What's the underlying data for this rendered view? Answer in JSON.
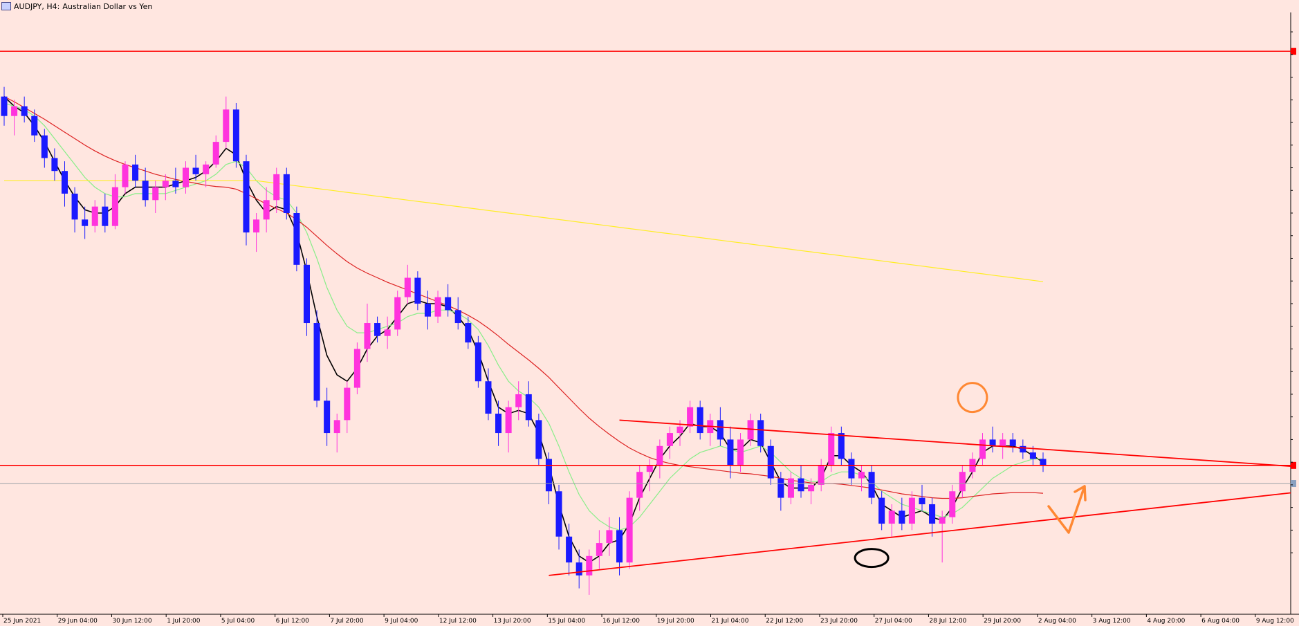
{
  "window": {
    "symbol": "AUDJPY, H4:",
    "description": "Australian Dollar vs Yen"
  },
  "colors": {
    "background": "#ffe6e0",
    "bull": "#ff33dd",
    "bear": "#1a1aff",
    "ma_fast": "#000000",
    "ma_mid": "#88ee88",
    "ma_slow": "#dd2222",
    "ma_long": "#ffee22",
    "level": "#ff0000",
    "annotation_orange": "#ff8833",
    "annotation_black": "#000000"
  },
  "chart_data": {
    "type": "candlestick",
    "timeframe": "H4",
    "xlabels": [
      "25 Jun 2021",
      "29 Jun 04:00",
      "30 Jun 12:00",
      "1 Jul 20:00",
      "5 Jul 04:00",
      "6 Jul 12:00",
      "7 Jul 20:00",
      "9 Jul 04:00",
      "12 Jul 12:00",
      "13 Jul 20:00",
      "15 Jul 04:00",
      "16 Jul 12:00",
      "19 Jul 20:00",
      "21 Jul 04:00",
      "22 Jul 12:00",
      "23 Jul 20:00",
      "27 Jul 04:00",
      "28 Jul 12:00",
      "29 Jul 20:00",
      "2 Aug 04:00",
      "3 Aug 12:00",
      "4 Aug 20:00",
      "6 Aug 04:00",
      "9 Aug 12:00"
    ],
    "ylabels": [
      "",
      "",
      "",
      "",
      "",
      "",
      "",
      "",
      "",
      "",
      "",
      "",
      "",
      "",
      "",
      "",
      "",
      "",
      "",
      "",
      "",
      "",
      "",
      ""
    ],
    "ohlc": [
      [
        84.0,
        84.15,
        83.55,
        83.7
      ],
      [
        83.7,
        83.95,
        83.4,
        83.85
      ],
      [
        83.85,
        84.0,
        83.6,
        83.7
      ],
      [
        83.7,
        83.8,
        83.3,
        83.4
      ],
      [
        83.4,
        83.5,
        82.9,
        83.05
      ],
      [
        83.05,
        83.2,
        82.7,
        82.85
      ],
      [
        82.85,
        83.0,
        82.3,
        82.5
      ],
      [
        82.5,
        82.6,
        81.9,
        82.1
      ],
      [
        82.1,
        82.3,
        81.8,
        82.0
      ],
      [
        82.0,
        82.4,
        81.9,
        82.3
      ],
      [
        82.3,
        82.5,
        81.9,
        82.0
      ],
      [
        82.0,
        82.8,
        81.95,
        82.6
      ],
      [
        82.6,
        83.0,
        82.5,
        82.95
      ],
      [
        82.95,
        83.1,
        82.6,
        82.7
      ],
      [
        82.7,
        82.9,
        82.3,
        82.4
      ],
      [
        82.4,
        82.7,
        82.2,
        82.6
      ],
      [
        82.6,
        82.8,
        82.4,
        82.7
      ],
      [
        82.7,
        82.9,
        82.5,
        82.6
      ],
      [
        82.6,
        83.0,
        82.5,
        82.9
      ],
      [
        82.9,
        83.1,
        82.7,
        82.8
      ],
      [
        82.8,
        83.0,
        82.6,
        82.95
      ],
      [
        82.95,
        83.4,
        82.9,
        83.3
      ],
      [
        83.3,
        84.0,
        83.2,
        83.8
      ],
      [
        83.8,
        83.9,
        82.9,
        83.0
      ],
      [
        83.0,
        83.1,
        81.7,
        81.9
      ],
      [
        81.9,
        82.2,
        81.6,
        82.1
      ],
      [
        82.1,
        82.6,
        81.9,
        82.4
      ],
      [
        82.4,
        82.9,
        82.2,
        82.8
      ],
      [
        82.8,
        82.9,
        82.1,
        82.2
      ],
      [
        82.2,
        82.3,
        81.3,
        81.4
      ],
      [
        81.4,
        81.5,
        80.3,
        80.5
      ],
      [
        80.5,
        80.7,
        79.2,
        79.3
      ],
      [
        79.3,
        79.5,
        78.6,
        78.8
      ],
      [
        78.8,
        79.1,
        78.5,
        79.0
      ],
      [
        79.0,
        79.6,
        78.8,
        79.5
      ],
      [
        79.5,
        80.2,
        79.4,
        80.1
      ],
      [
        80.1,
        80.8,
        79.9,
        80.5
      ],
      [
        80.5,
        80.6,
        80.2,
        80.3
      ],
      [
        80.3,
        80.6,
        80.1,
        80.4
      ],
      [
        80.4,
        81.0,
        80.3,
        80.9
      ],
      [
        80.9,
        81.4,
        80.8,
        81.2
      ],
      [
        81.2,
        81.3,
        80.7,
        80.8
      ],
      [
        80.8,
        81.0,
        80.4,
        80.6
      ],
      [
        80.6,
        81.0,
        80.5,
        80.9
      ],
      [
        80.9,
        81.1,
        80.6,
        80.7
      ],
      [
        80.7,
        80.9,
        80.4,
        80.5
      ],
      [
        80.5,
        80.6,
        80.1,
        80.2
      ],
      [
        80.2,
        80.3,
        79.5,
        79.6
      ],
      [
        79.6,
        79.8,
        79.0,
        79.1
      ],
      [
        79.1,
        79.3,
        78.6,
        78.8
      ],
      [
        78.8,
        79.3,
        78.5,
        79.2
      ],
      [
        79.2,
        79.6,
        79.0,
        79.4
      ],
      [
        79.4,
        79.6,
        78.9,
        79.0
      ],
      [
        79.0,
        79.1,
        78.3,
        78.4
      ],
      [
        78.4,
        78.5,
        77.7,
        77.9
      ],
      [
        77.9,
        78.0,
        77.0,
        77.2
      ],
      [
        77.2,
        77.4,
        76.6,
        76.8
      ],
      [
        76.8,
        77.0,
        76.4,
        76.6
      ],
      [
        76.6,
        77.0,
        76.3,
        76.9
      ],
      [
        76.9,
        77.3,
        76.7,
        77.1
      ],
      [
        77.1,
        77.5,
        76.9,
        77.3
      ],
      [
        77.3,
        77.5,
        76.6,
        76.8
      ],
      [
        76.8,
        77.9,
        76.7,
        77.8
      ],
      [
        77.8,
        78.3,
        77.6,
        78.2
      ],
      [
        78.2,
        78.4,
        77.9,
        78.3
      ],
      [
        78.3,
        78.7,
        78.1,
        78.6
      ],
      [
        78.6,
        78.9,
        78.4,
        78.8
      ],
      [
        78.8,
        79.0,
        78.6,
        78.9
      ],
      [
        78.9,
        79.3,
        78.8,
        79.2
      ],
      [
        79.2,
        79.3,
        78.7,
        78.8
      ],
      [
        78.8,
        79.1,
        78.6,
        79.0
      ],
      [
        79.0,
        79.2,
        78.6,
        78.7
      ],
      [
        78.7,
        78.9,
        78.1,
        78.3
      ],
      [
        78.3,
        78.8,
        78.2,
        78.7
      ],
      [
        78.7,
        79.1,
        78.6,
        79.0
      ],
      [
        79.0,
        79.1,
        78.5,
        78.6
      ],
      [
        78.6,
        78.7,
        78.0,
        78.1
      ],
      [
        78.1,
        78.2,
        77.6,
        77.8
      ],
      [
        77.8,
        78.2,
        77.7,
        78.1
      ],
      [
        78.1,
        78.3,
        77.8,
        77.9
      ],
      [
        77.9,
        78.1,
        77.7,
        78.0
      ],
      [
        78.0,
        78.4,
        77.9,
        78.3
      ],
      [
        78.3,
        78.9,
        78.2,
        78.8
      ],
      [
        78.8,
        78.9,
        78.3,
        78.4
      ],
      [
        78.4,
        78.5,
        78.0,
        78.1
      ],
      [
        78.1,
        78.3,
        77.9,
        78.2
      ],
      [
        78.2,
        78.3,
        77.7,
        77.8
      ],
      [
        77.8,
        77.9,
        77.3,
        77.4
      ],
      [
        77.4,
        77.7,
        77.2,
        77.6
      ],
      [
        77.6,
        77.8,
        77.3,
        77.4
      ],
      [
        77.4,
        77.9,
        77.3,
        77.8
      ],
      [
        77.8,
        78.0,
        77.6,
        77.7
      ],
      [
        77.7,
        77.8,
        77.2,
        77.4
      ],
      [
        77.4,
        77.6,
        76.8,
        77.5
      ],
      [
        77.5,
        78.0,
        77.4,
        77.9
      ],
      [
        77.9,
        78.3,
        77.8,
        78.2
      ],
      [
        78.2,
        78.5,
        78.1,
        78.4
      ],
      [
        78.4,
        78.8,
        78.3,
        78.7
      ],
      [
        78.7,
        78.9,
        78.5,
        78.6
      ],
      [
        78.6,
        78.8,
        78.4,
        78.7
      ],
      [
        78.7,
        78.8,
        78.5,
        78.6
      ],
      [
        78.6,
        78.7,
        78.4,
        78.5
      ],
      [
        78.5,
        78.6,
        78.3,
        78.4
      ],
      [
        78.4,
        78.5,
        78.2,
        78.3
      ]
    ],
    "moving_averages": [
      {
        "color_key": "ma_fast",
        "values": [
          84.0,
          83.85,
          83.75,
          83.55,
          83.3,
          83.0,
          82.7,
          82.45,
          82.25,
          82.2,
          82.2,
          82.3,
          82.5,
          82.6,
          82.6,
          82.6,
          82.6,
          82.65,
          82.7,
          82.75,
          82.85,
          83.0,
          83.2,
          83.1,
          82.7,
          82.4,
          82.2,
          82.3,
          82.25,
          81.9,
          81.3,
          80.6,
          80.0,
          79.7,
          79.6,
          79.8,
          80.1,
          80.3,
          80.4,
          80.6,
          80.8,
          80.85,
          80.8,
          80.8,
          80.75,
          80.6,
          80.4,
          80.05,
          79.6,
          79.2,
          79.1,
          79.15,
          79.1,
          78.8,
          78.3,
          77.7,
          77.2,
          76.9,
          76.8,
          76.9,
          77.1,
          77.15,
          77.4,
          77.8,
          78.1,
          78.4,
          78.6,
          78.75,
          78.95,
          78.9,
          78.9,
          78.8,
          78.55,
          78.55,
          78.7,
          78.65,
          78.35,
          78.05,
          77.95,
          77.95,
          77.95,
          78.1,
          78.45,
          78.45,
          78.3,
          78.2,
          78.0,
          77.7,
          77.6,
          77.5,
          77.55,
          77.6,
          77.5,
          77.45,
          77.65,
          77.95,
          78.2,
          78.5,
          78.6,
          78.6,
          78.6,
          78.55,
          78.45,
          78.35
        ]
      },
      {
        "color_key": "ma_mid",
        "values": [
          83.9,
          83.85,
          83.8,
          83.7,
          83.55,
          83.35,
          83.15,
          82.95,
          82.75,
          82.6,
          82.5,
          82.45,
          82.45,
          82.5,
          82.5,
          82.5,
          82.5,
          82.55,
          82.6,
          82.65,
          82.7,
          82.8,
          82.95,
          83.0,
          82.9,
          82.7,
          82.55,
          82.45,
          82.4,
          82.2,
          81.9,
          81.5,
          81.05,
          80.7,
          80.45,
          80.35,
          80.35,
          80.4,
          80.45,
          80.5,
          80.6,
          80.65,
          80.65,
          80.7,
          80.7,
          80.65,
          80.55,
          80.4,
          80.15,
          79.85,
          79.6,
          79.45,
          79.35,
          79.2,
          78.95,
          78.6,
          78.2,
          77.85,
          77.6,
          77.45,
          77.35,
          77.3,
          77.35,
          77.5,
          77.7,
          77.9,
          78.1,
          78.25,
          78.4,
          78.5,
          78.55,
          78.6,
          78.55,
          78.5,
          78.55,
          78.6,
          78.5,
          78.35,
          78.2,
          78.1,
          78.05,
          78.05,
          78.15,
          78.2,
          78.2,
          78.15,
          78.05,
          77.9,
          77.8,
          77.7,
          77.65,
          77.6,
          77.55,
          77.5,
          77.55,
          77.65,
          77.8,
          77.95,
          78.1,
          78.2,
          78.3,
          78.35,
          78.4,
          78.4
        ]
      },
      {
        "color_key": "ma_slow",
        "values": [
          84.0,
          83.92,
          83.83,
          83.74,
          83.65,
          83.55,
          83.45,
          83.35,
          83.25,
          83.16,
          83.08,
          83.01,
          82.95,
          82.9,
          82.85,
          82.8,
          82.76,
          82.72,
          82.69,
          82.66,
          82.63,
          82.61,
          82.6,
          82.57,
          82.5,
          82.42,
          82.34,
          82.27,
          82.2,
          82.1,
          81.98,
          81.84,
          81.7,
          81.57,
          81.45,
          81.35,
          81.27,
          81.2,
          81.13,
          81.07,
          81.01,
          80.95,
          80.89,
          80.83,
          80.77,
          80.7,
          80.62,
          80.53,
          80.42,
          80.3,
          80.17,
          80.05,
          79.93,
          79.8,
          79.66,
          79.5,
          79.34,
          79.18,
          79.03,
          78.9,
          78.78,
          78.67,
          78.57,
          78.49,
          78.42,
          78.37,
          78.33,
          78.3,
          78.28,
          78.26,
          78.24,
          78.22,
          78.2,
          78.18,
          78.17,
          78.15,
          78.13,
          78.1,
          78.07,
          78.05,
          78.03,
          78.02,
          78.02,
          78.01,
          77.99,
          77.97,
          77.95,
          77.92,
          77.89,
          77.86,
          77.84,
          77.82,
          77.8,
          77.79,
          77.79,
          77.8,
          77.82,
          77.84,
          77.86,
          77.87,
          77.88,
          77.88,
          77.88,
          77.87
        ]
      },
      {
        "color_key": "ma_long",
        "values": [
          82.7,
          82.7,
          82.7,
          82.7,
          82.7,
          82.7,
          82.7,
          82.7,
          82.7,
          82.7,
          82.7,
          82.7,
          82.7,
          82.7,
          82.7,
          82.7,
          82.7,
          82.7,
          82.7,
          82.7,
          82.7,
          82.7,
          82.7,
          82.7,
          82.7,
          82.7,
          82.68,
          82.66,
          82.64,
          82.62,
          82.6,
          82.58,
          82.56,
          82.54,
          82.52,
          82.5,
          82.48,
          82.46,
          82.44,
          82.42,
          82.4,
          82.38,
          82.36,
          82.34,
          82.32,
          82.3,
          82.28,
          82.26,
          82.24,
          82.22,
          82.2,
          82.18,
          82.16,
          82.14,
          82.12,
          82.1,
          82.08,
          82.06,
          82.04,
          82.02,
          82.0,
          81.98,
          81.96,
          81.94,
          81.92,
          81.9,
          81.88,
          81.86,
          81.84,
          81.82,
          81.8,
          81.78,
          81.76,
          81.74,
          81.72,
          81.7,
          81.68,
          81.66,
          81.64,
          81.62,
          81.6,
          81.58,
          81.56,
          81.54,
          81.52,
          81.5,
          81.48,
          81.46,
          81.44,
          81.42,
          81.4,
          81.38,
          81.36,
          81.34,
          81.32,
          81.3,
          81.28,
          81.26,
          81.24,
          81.22,
          81.2,
          81.18,
          81.16,
          81.14
        ]
      }
    ],
    "levels": [
      {
        "name": "resistance",
        "price": 84.7
      },
      {
        "name": "support",
        "price": 78.3
      }
    ],
    "trendlines": [
      {
        "name": "upper-trendline",
        "from": {
          "index": 61,
          "price": 79.0
        },
        "to": {
          "index": 103,
          "price": 78.55
        }
      },
      {
        "name": "lower-trendline",
        "from": {
          "index": 54,
          "price": 76.6
        },
        "to": {
          "index": 103,
          "price": 77.45
        }
      }
    ],
    "current_price": 78.02
  }
}
